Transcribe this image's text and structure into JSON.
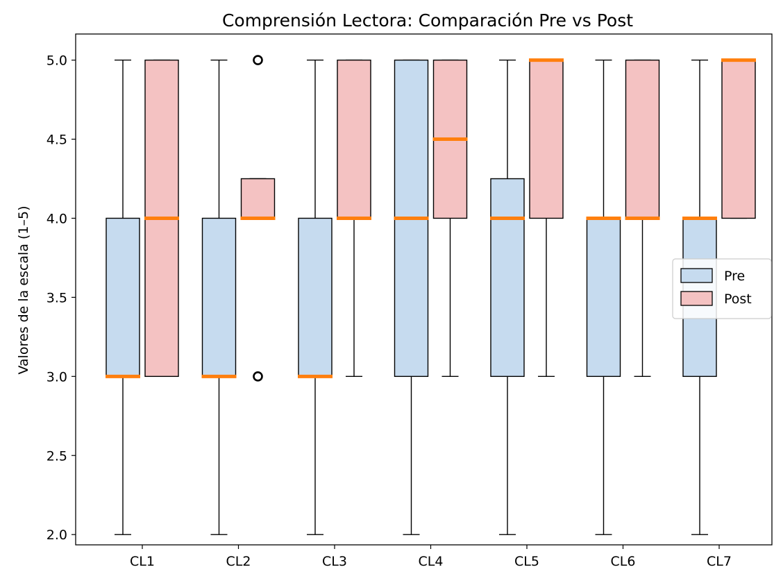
{
  "chart_data": {
    "type": "boxplot",
    "title": "Comprensión Lectora: Comparación Pre vs Post",
    "xlabel": "",
    "ylabel": "Valores de la escala (1–5)",
    "ylim": [
      1.935,
      5.165
    ],
    "yticks": [
      "2.0",
      "2.5",
      "3.0",
      "3.5",
      "4.0",
      "4.5",
      "5.0"
    ],
    "categories": [
      "CL1",
      "CL2",
      "CL3",
      "CL4",
      "CL5",
      "CL6",
      "CL7"
    ],
    "legend_position": "center-right",
    "grid": false,
    "series": [
      {
        "name": "Pre",
        "color": "#c6dbef",
        "boxes": [
          {
            "whisker_low": 2.0,
            "q1": 3.0,
            "median": 3.0,
            "q3": 4.0,
            "whisker_high": 5.0,
            "outliers": []
          },
          {
            "whisker_low": 2.0,
            "q1": 3.0,
            "median": 3.0,
            "q3": 4.0,
            "whisker_high": 5.0,
            "outliers": []
          },
          {
            "whisker_low": 2.0,
            "q1": 3.0,
            "median": 3.0,
            "q3": 4.0,
            "whisker_high": 5.0,
            "outliers": []
          },
          {
            "whisker_low": 2.0,
            "q1": 3.0,
            "median": 4.0,
            "q3": 5.0,
            "whisker_high": 5.0,
            "outliers": []
          },
          {
            "whisker_low": 2.0,
            "q1": 3.0,
            "median": 4.0,
            "q3": 4.25,
            "whisker_high": 5.0,
            "outliers": []
          },
          {
            "whisker_low": 2.0,
            "q1": 3.0,
            "median": 4.0,
            "q3": 4.0,
            "whisker_high": 5.0,
            "outliers": []
          },
          {
            "whisker_low": 2.0,
            "q1": 3.0,
            "median": 4.0,
            "q3": 4.0,
            "whisker_high": 5.0,
            "outliers": []
          }
        ]
      },
      {
        "name": "Post",
        "color": "#f4c2c2",
        "boxes": [
          {
            "whisker_low": 3.0,
            "q1": 3.0,
            "median": 4.0,
            "q3": 5.0,
            "whisker_high": 5.0,
            "outliers": []
          },
          {
            "whisker_low": 4.0,
            "q1": 4.0,
            "median": 4.0,
            "q3": 4.25,
            "whisker_high": 4.25,
            "outliers": [
              5.0,
              3.0
            ]
          },
          {
            "whisker_low": 3.0,
            "q1": 4.0,
            "median": 4.0,
            "q3": 5.0,
            "whisker_high": 5.0,
            "outliers": []
          },
          {
            "whisker_low": 3.0,
            "q1": 4.0,
            "median": 4.5,
            "q3": 5.0,
            "whisker_high": 5.0,
            "outliers": []
          },
          {
            "whisker_low": 3.0,
            "q1": 4.0,
            "median": 5.0,
            "q3": 5.0,
            "whisker_high": 5.0,
            "outliers": []
          },
          {
            "whisker_low": 3.0,
            "q1": 4.0,
            "median": 4.0,
            "q3": 5.0,
            "whisker_high": 5.0,
            "outliers": []
          },
          {
            "whisker_low": 4.0,
            "q1": 4.0,
            "median": 5.0,
            "q3": 5.0,
            "whisker_high": 5.0,
            "outliers": []
          }
        ]
      }
    ],
    "colors": {
      "median": "#ff7f0e",
      "edge": "#000000"
    }
  }
}
